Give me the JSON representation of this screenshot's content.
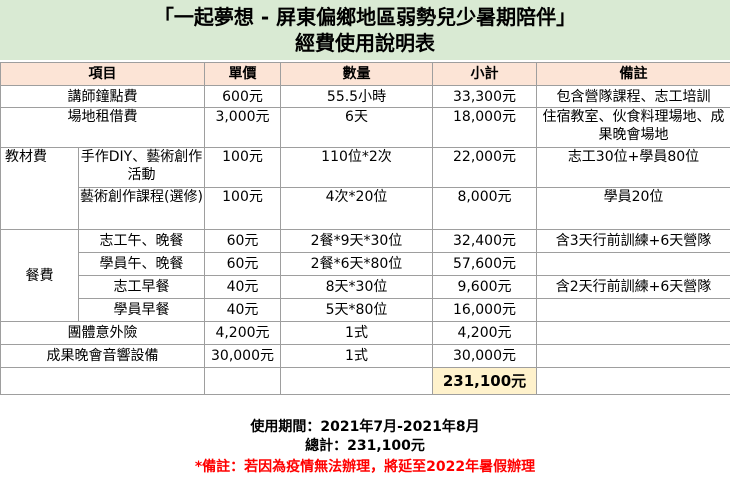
{
  "title": {
    "line1": "「一起夢想 - 屏東偏鄉地區弱勢兒少暑期陪伴」",
    "line2": "經費使用說明表"
  },
  "headers": [
    "項目",
    "單價",
    "數量",
    "小計",
    "備註"
  ],
  "rows": {
    "r1": {
      "item": "講師鐘點費",
      "price": "600元",
      "qty": "55.5小時",
      "subtotal": "33,300元",
      "note": "包含營隊課程、志工培訓"
    },
    "r2": {
      "item": "場地租借費",
      "price": "3,000元",
      "qty": "6天",
      "subtotal": "18,000元",
      "note": "住宿教室、伙食料理場地、成果晚會場地"
    },
    "materials": {
      "category": "教材費",
      "r1": {
        "item": "手作DIY、藝術創作活動",
        "price": "100元",
        "qty": "110位*2次",
        "subtotal": "22,000元",
        "note": "志工30位+學員80位"
      },
      "r2": {
        "item": "藝術創作課程(選修)",
        "price": "100元",
        "qty": "4次*20位",
        "subtotal": "8,000元",
        "note": "學員20位"
      }
    },
    "meals": {
      "category": "餐費",
      "r1": {
        "item": "志工午、晚餐",
        "price": "60元",
        "qty": "2餐*9天*30位",
        "subtotal": "32,400元",
        "note": "含3天行前訓練+6天營隊"
      },
      "r2": {
        "item": "學員午、晚餐",
        "price": "60元",
        "qty": "2餐*6天*80位",
        "subtotal": "57,600元",
        "note": ""
      },
      "r3": {
        "item": "志工早餐",
        "price": "40元",
        "qty": "8天*30位",
        "subtotal": "9,600元",
        "note": "含2天行前訓練+6天營隊"
      },
      "r4": {
        "item": "學員早餐",
        "price": "40元",
        "qty": "5天*80位",
        "subtotal": "16,000元",
        "note": ""
      }
    },
    "r3": {
      "item": "團體意外險",
      "price": "4,200元",
      "qty": "1式",
      "subtotal": "4,200元",
      "note": ""
    },
    "r4": {
      "item": "成果晚會音響設備",
      "price": "30,000元",
      "qty": "1式",
      "subtotal": "30,000元",
      "note": ""
    }
  },
  "total": "231,100元",
  "footer": {
    "period": "使用期間：2021年7月-2021年8月",
    "total": "總計：231,100元",
    "note": "*備註：若因為疫情無法辦理，將延至2022年暑假辦理"
  }
}
